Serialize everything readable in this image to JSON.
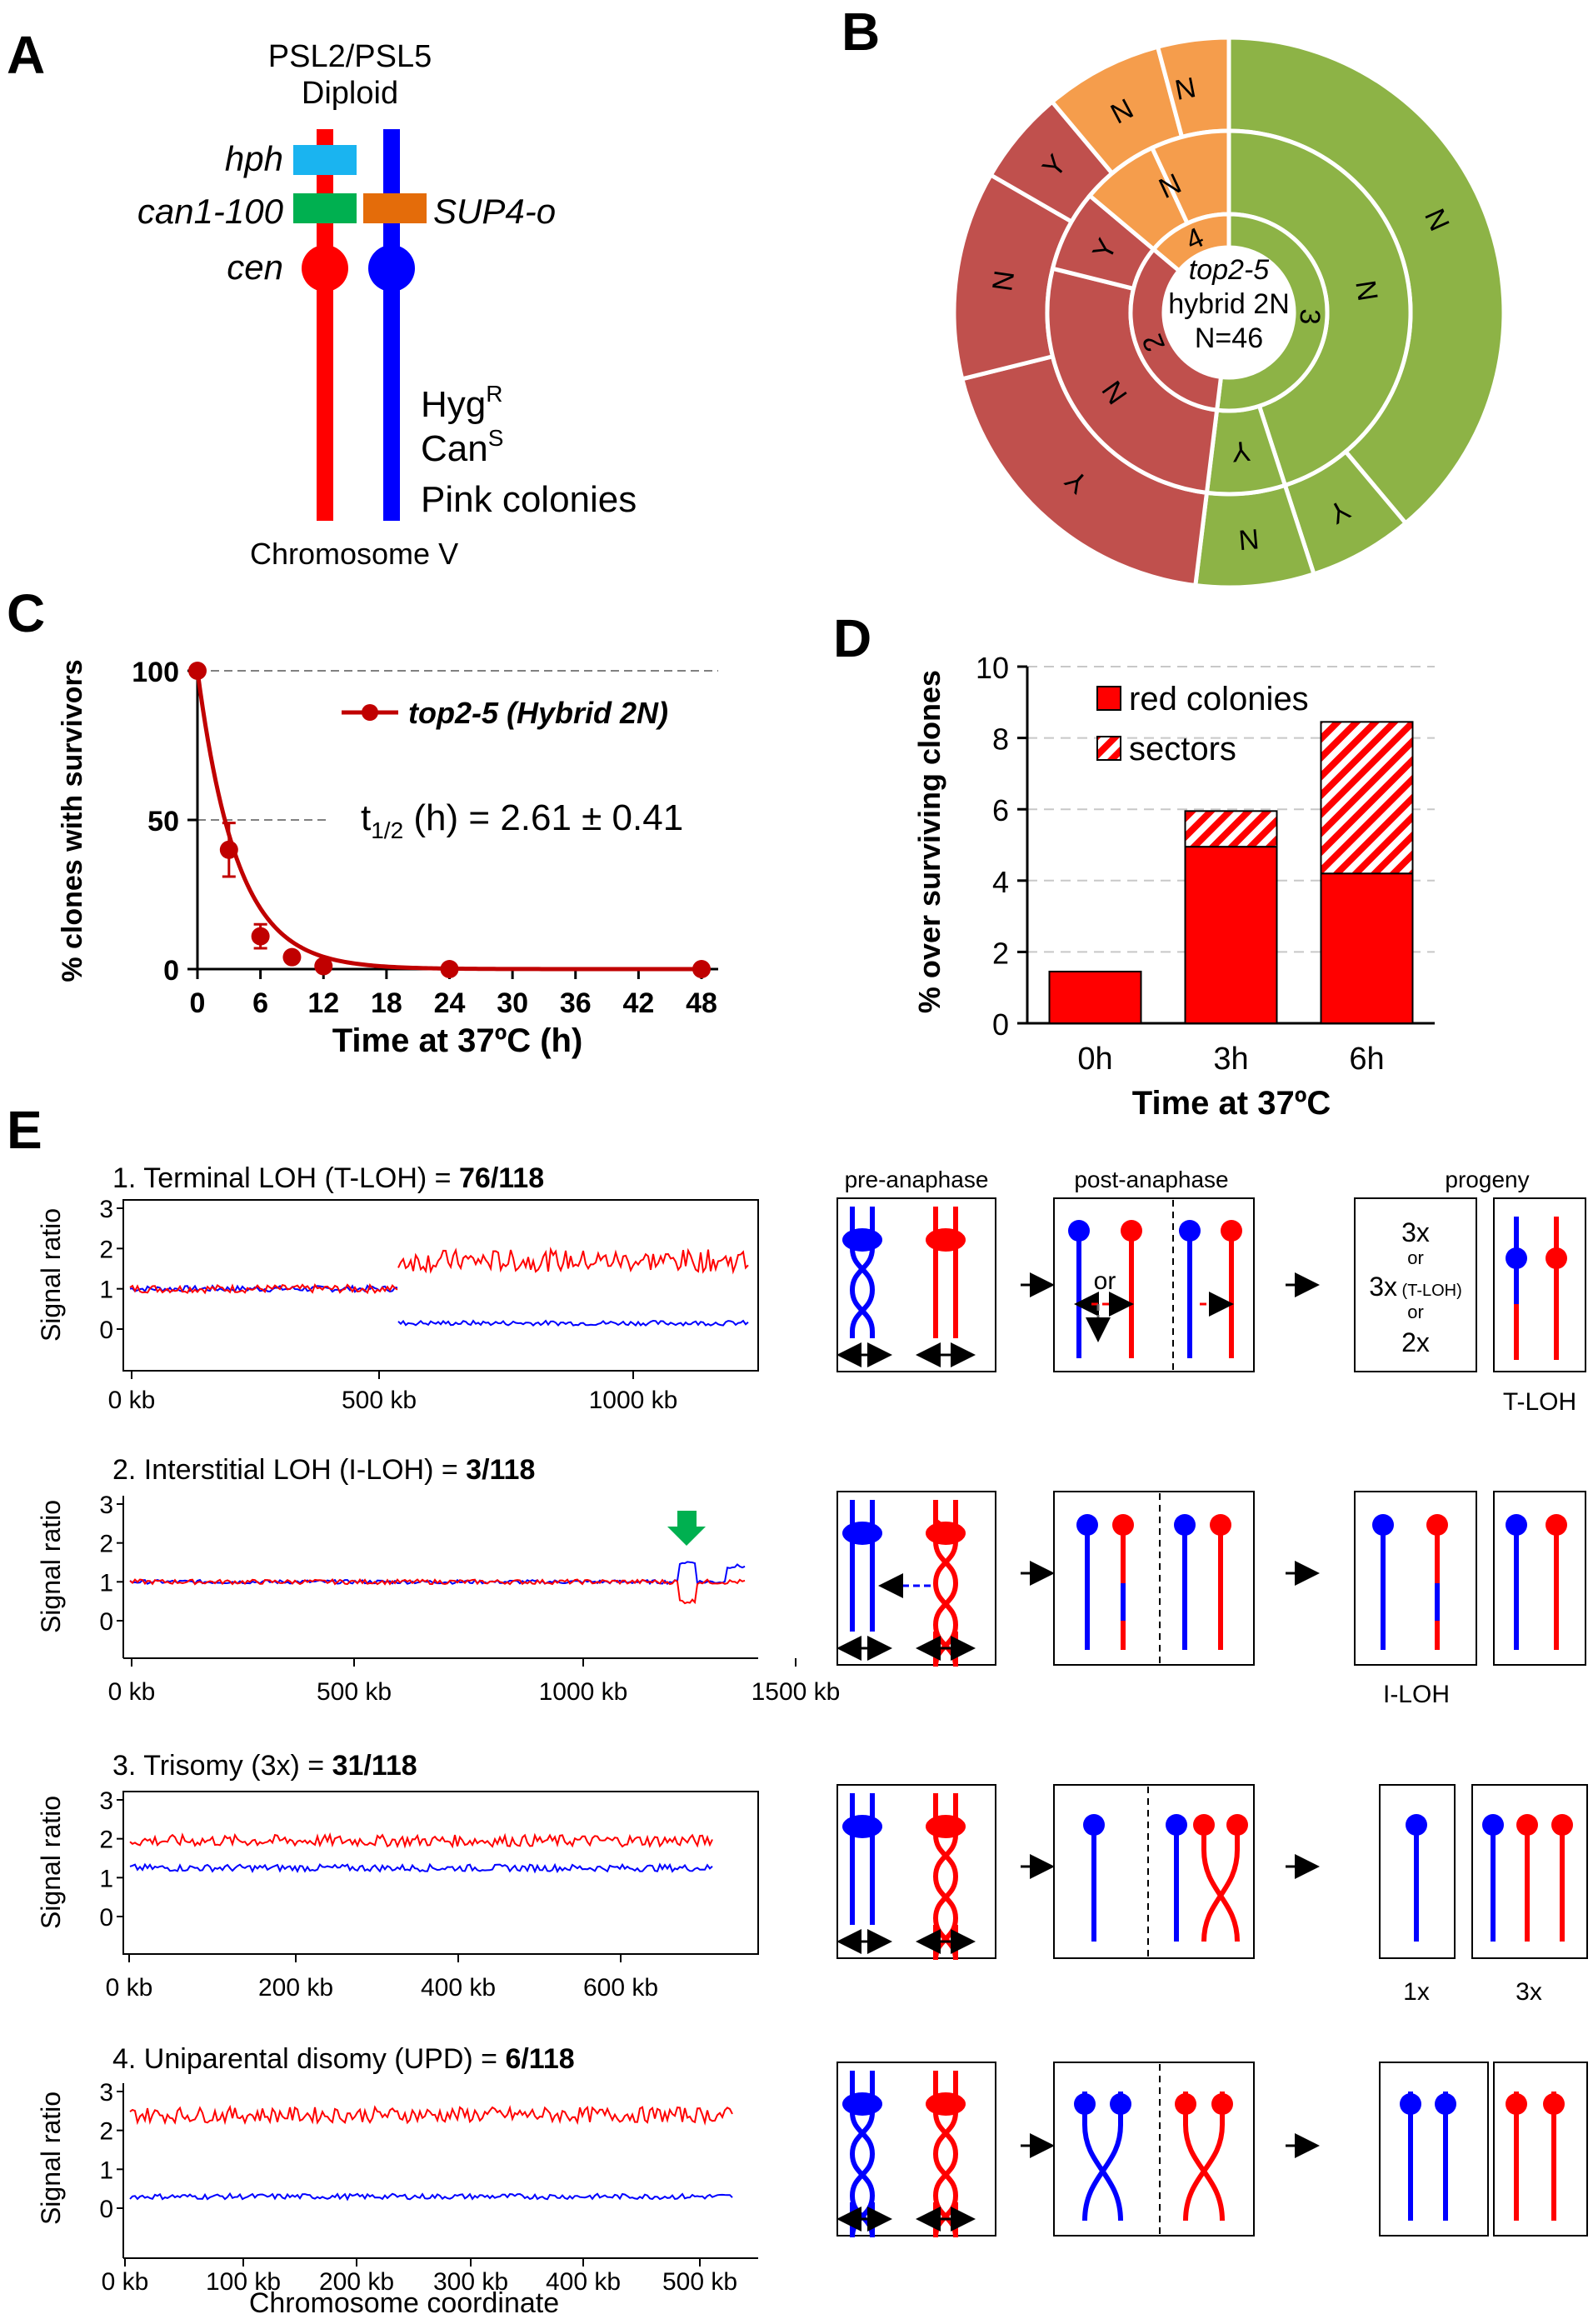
{
  "panel_labels": [
    "A",
    "B",
    "C",
    "D",
    "E"
  ],
  "panelA": {
    "title1": "PSL2/PSL5",
    "title2": "Diploid",
    "marker_hph": "hph",
    "marker_can": "can1-100",
    "marker_sup": "SUP4-o",
    "marker_cen": "cen",
    "pheno1": "Hyg",
    "pheno1_sup": "R",
    "pheno2": "Can",
    "pheno2_sup": "S",
    "pheno3": "Pink colonies",
    "chromosome": "Chromosome V",
    "colors": {
      "red": "#ff0000",
      "blue": "#0000ff",
      "hph": "#1ab4f0",
      "can": "#00b050",
      "sup": "#e46c0a"
    }
  },
  "panelB": {
    "center1": "top2-5",
    "center2": "hybrid 2N",
    "center3": "N=46",
    "inner_labels": [
      "3",
      "2",
      "4"
    ],
    "middle_labels": [
      "N",
      "Y",
      "N",
      "Y",
      "N"
    ],
    "outer_labels": [
      "N",
      "Y",
      "N",
      "Y",
      "N",
      "Y",
      "N",
      "N"
    ],
    "colors": {
      "class3": "#8db346",
      "class2": "#c0504d",
      "class4": "#f59d4c"
    }
  },
  "panelC": {
    "ylabel": "% clones with survivors",
    "xlabel": "Time at 37ºC (h)",
    "legend": "top2-5 (Hybrid 2N)",
    "annotation_prefix": "t",
    "annotation_sub": "1/2",
    "annotation_rest": " (h) = 2.61 ± 0.41",
    "yticks": [
      "0",
      "50",
      "100"
    ],
    "xticks": [
      "0",
      "6",
      "12",
      "18",
      "24",
      "30",
      "36",
      "42",
      "48"
    ]
  },
  "panelD": {
    "ylabel": "% over surviving clones",
    "xlabel": "Time at 37ºC",
    "legend_red": "red colonies",
    "legend_sectors": "sectors",
    "yticks": [
      "0",
      "2",
      "4",
      "6",
      "8",
      "10"
    ],
    "categories": [
      "0h",
      "3h",
      "6h"
    ]
  },
  "panelE": {
    "row1_title": "1. Terminal LOH (T-LOH) = ",
    "row1_count": "76/118",
    "row2_title": "2. Interstitial LOH (I-LOH) = ",
    "row2_count": "3/118",
    "row3_title": "3. Trisomy (3x) = ",
    "row3_count": "31/118",
    "row4_title": "4. Uniparental disomy (UPD) = ",
    "row4_count": "6/118",
    "ylabel": "Signal ratio",
    "yticks": [
      "0",
      "1",
      "2",
      "3"
    ],
    "row1_xticks": [
      "0 kb",
      "500 kb",
      "1000 kb"
    ],
    "row2_xticks": [
      "0 kb",
      "500 kb",
      "1000 kb",
      "1500 kb"
    ],
    "row3_xticks": [
      "0 kb",
      "200 kb",
      "400 kb",
      "600 kb"
    ],
    "row4_xticks": [
      "0 kb",
      "100 kb",
      "200 kb",
      "300 kb",
      "400 kb",
      "500 kb"
    ],
    "xlabel": "Chromosome coordinate",
    "col_pre": "pre-anaphase",
    "col_post": "post-anaphase",
    "col_progeny": "progeny",
    "or_label": "or",
    "progeny_box": [
      "3x",
      "or",
      "3x",
      "(T-LOH)",
      "or",
      "2x"
    ],
    "tloh_label": "T-LOH",
    "iloh_label": "I-LOH",
    "x1_label": "1x",
    "x3_label": "3x"
  },
  "chart_data": [
    {
      "type": "line",
      "title": "",
      "xlabel": "Time at 37ºC (h)",
      "ylabel": "% clones with survivors",
      "xlim": [
        0,
        48
      ],
      "ylim": [
        0,
        100
      ],
      "series": [
        {
          "name": "top2-5 (Hybrid 2N)",
          "x": [
            0,
            3,
            6,
            9,
            12,
            24,
            48
          ],
          "y": [
            100,
            40,
            11,
            4,
            1,
            0,
            0
          ],
          "err": [
            0,
            9,
            4,
            1,
            0.5,
            0,
            0
          ]
        }
      ]
    },
    {
      "type": "bar",
      "title": "",
      "xlabel": "Time at 37ºC",
      "ylabel": "% over surviving clones",
      "categories": [
        "0h",
        "3h",
        "6h"
      ],
      "ylim": [
        0,
        10
      ],
      "series": [
        {
          "name": "red colonies",
          "values": [
            1.45,
            4.95,
            4.2
          ]
        },
        {
          "name": "sectors",
          "values": [
            0,
            1.0,
            4.25
          ]
        }
      ],
      "stacked": true
    },
    {
      "type": "pie",
      "title": "",
      "center_text": [
        "top2-5",
        "hybrid 2N",
        "N=46"
      ],
      "rings": [
        {
          "labels": [
            "3",
            "2",
            "4"
          ],
          "values": [
            52,
            34,
            14
          ]
        },
        {
          "labels": [
            "N",
            "Y",
            "N",
            "Y",
            "N"
          ],
          "values": [
            45,
            7,
            27,
            7,
            14
          ]
        },
        {
          "labels": [
            "N",
            "Y",
            "N",
            "Y",
            "N",
            "Y",
            "N",
            "N"
          ],
          "values": [
            39,
            6,
            7,
            19,
            15,
            7,
            7,
            0
          ]
        }
      ]
    }
  ]
}
